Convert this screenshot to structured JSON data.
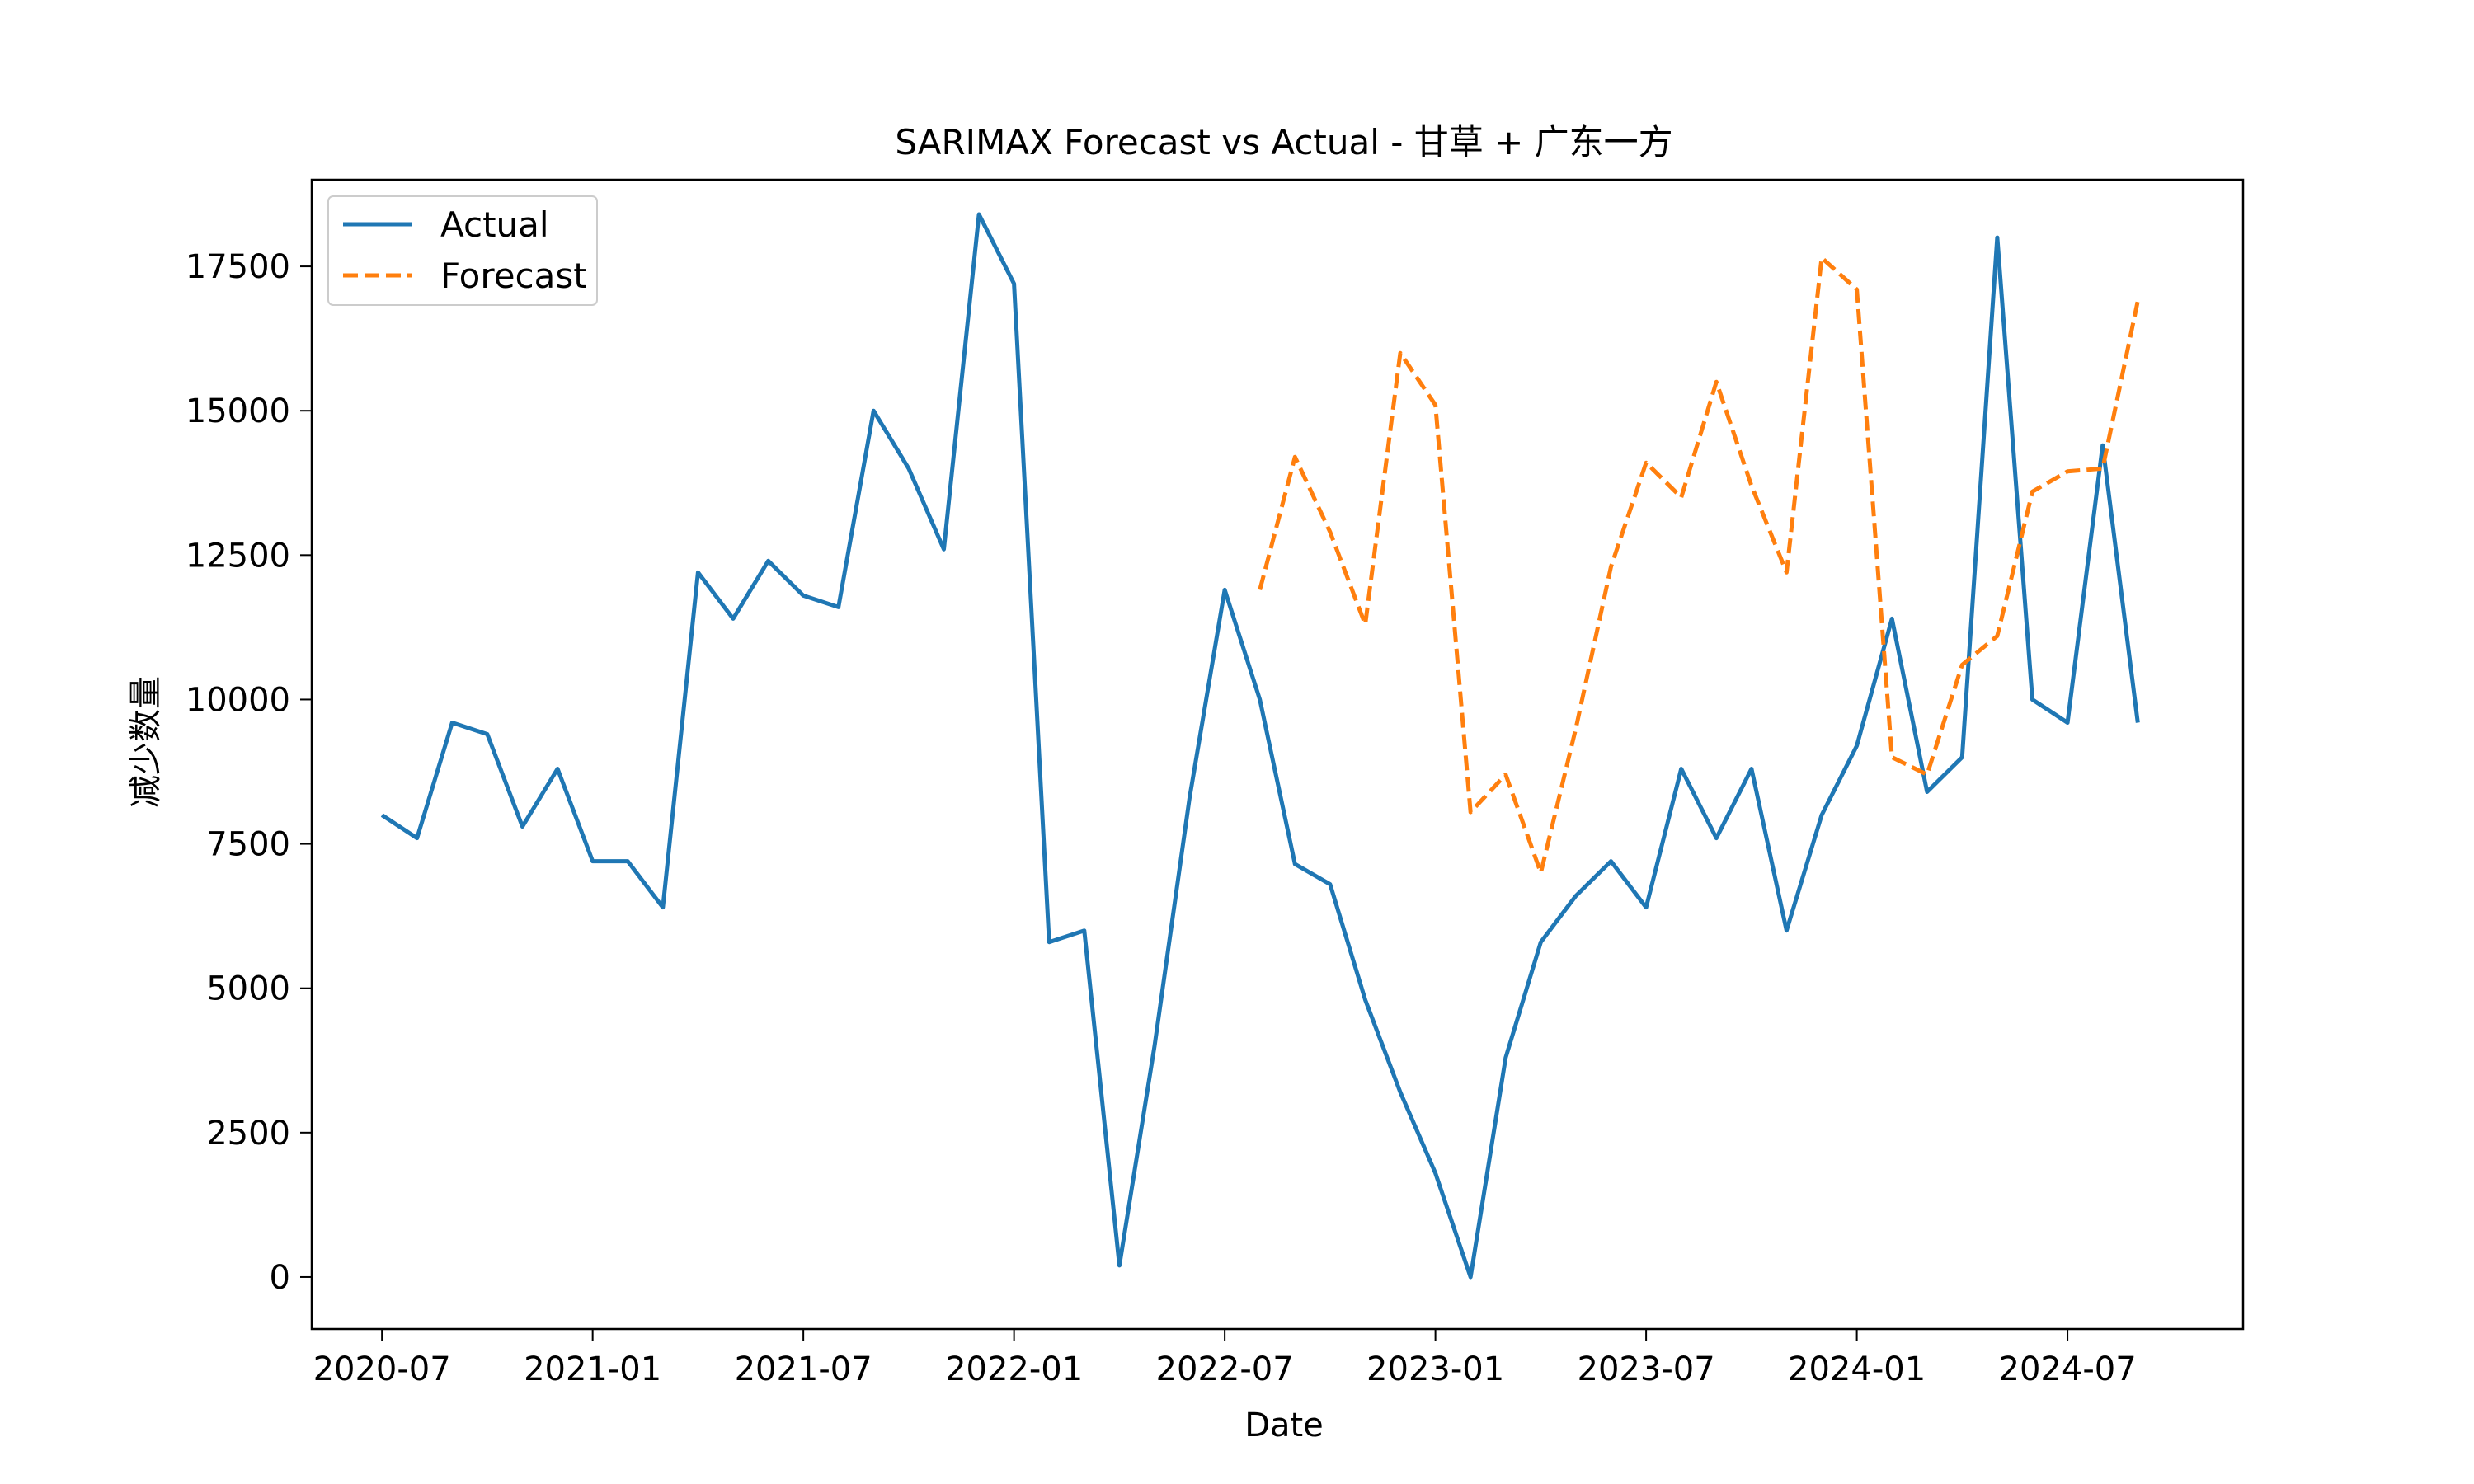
{
  "chart_data": {
    "type": "line",
    "title": "SARIMAX Forecast vs Actual - 甘草 + 广东一方",
    "xlabel": "Date",
    "ylabel": "减少数量",
    "ylim": [
      -900,
      19000
    ],
    "xlim": [
      "2020-05-01",
      "2024-12-01"
    ],
    "x_ticks": [
      "2020-07",
      "2021-01",
      "2021-07",
      "2022-01",
      "2022-07",
      "2023-01",
      "2023-07",
      "2024-01",
      "2024-07"
    ],
    "y_ticks": [
      0,
      2500,
      5000,
      7500,
      10000,
      12500,
      15000,
      17500
    ],
    "grid": false,
    "legend_position": "upper-left",
    "series": [
      {
        "name": "Actual",
        "color": "#1f77b4",
        "style": "solid",
        "x": [
          "2020-07",
          "2020-08",
          "2020-09",
          "2020-10",
          "2020-11",
          "2020-12",
          "2021-01",
          "2021-02",
          "2021-03",
          "2021-04",
          "2021-05",
          "2021-06",
          "2021-07",
          "2021-08",
          "2021-09",
          "2021-10",
          "2021-11",
          "2021-12",
          "2022-01",
          "2022-02",
          "2022-03",
          "2022-04",
          "2022-05",
          "2022-06",
          "2022-07",
          "2022-08",
          "2022-09",
          "2022-10",
          "2022-11",
          "2022-12",
          "2023-01",
          "2023-02",
          "2023-03",
          "2023-04",
          "2023-05",
          "2023-06",
          "2023-07",
          "2023-08",
          "2023-09",
          "2023-10",
          "2023-11",
          "2023-12",
          "2024-01",
          "2024-02",
          "2024-03",
          "2024-04",
          "2024-05",
          "2024-06",
          "2024-07",
          "2024-08",
          "2024-09"
        ],
        "values": [
          8000,
          7600,
          9600,
          9400,
          7800,
          8800,
          7200,
          7200,
          6400,
          12200,
          11400,
          12400,
          11800,
          11600,
          15000,
          14000,
          12600,
          18400,
          17200,
          5800,
          6000,
          200,
          4000,
          8300,
          11900,
          10000,
          7150,
          6800,
          4800,
          3200,
          1800,
          0,
          3800,
          5800,
          6600,
          7200,
          6400,
          8800,
          7600,
          8800,
          6000,
          8000,
          9200,
          11400,
          8400,
          9000,
          18000,
          10000,
          9600,
          14400,
          9600
        ]
      },
      {
        "name": "Forecast",
        "color": "#ff7f0e",
        "style": "dashed",
        "x": [
          "2022-08",
          "2022-09",
          "2022-10",
          "2022-11",
          "2022-12",
          "2023-01",
          "2023-02",
          "2023-03",
          "2023-04",
          "2023-05",
          "2023-06",
          "2023-07",
          "2023-08",
          "2023-09",
          "2023-10",
          "2023-11",
          "2023-12",
          "2024-01",
          "2024-02",
          "2024-03",
          "2024-04",
          "2024-05",
          "2024-06",
          "2024-07",
          "2024-08",
          "2024-09"
        ],
        "values": [
          11900,
          14200,
          12900,
          11300,
          16000,
          15100,
          8050,
          8700,
          7000,
          9500,
          12300,
          14100,
          13500,
          15500,
          13700,
          12200,
          17650,
          17100,
          9000,
          8700,
          10600,
          11100,
          13600,
          13950,
          14000,
          16900
        ]
      }
    ]
  }
}
